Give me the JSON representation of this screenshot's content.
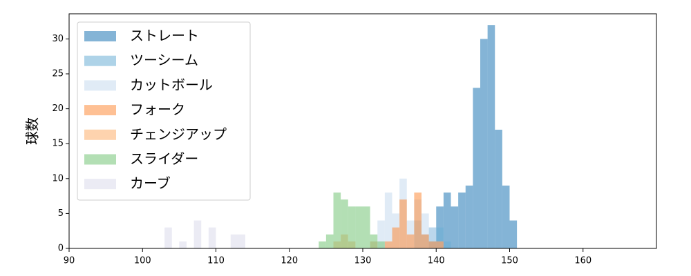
{
  "chart_data": {
    "type": "histogram",
    "y_label": "球数",
    "xlim": [
      90,
      170
    ],
    "ylim": [
      0,
      33.6
    ],
    "xticks": [
      90,
      100,
      110,
      120,
      130,
      140,
      150,
      160
    ],
    "yticks": [
      0,
      5,
      10,
      15,
      20,
      25,
      30
    ],
    "legend": "upper left",
    "series": [
      {
        "name": "ストレート",
        "color": "#1f77b4",
        "bins": [
          139,
          140,
          141,
          142,
          143,
          144,
          145,
          146,
          147,
          148,
          149,
          150,
          151
        ],
        "values": [
          1,
          6,
          8,
          6,
          8,
          9,
          23,
          30,
          32,
          17,
          9,
          4
        ]
      },
      {
        "name": "ツーシーム",
        "color": "#6baed6",
        "bins": [
          137,
          138,
          139,
          140,
          141,
          142
        ],
        "values": [
          4,
          2,
          3,
          3,
          1
        ]
      },
      {
        "name": "カットボール",
        "color": "#c6dbef",
        "bins": [
          131,
          132,
          133,
          134,
          135,
          136,
          137,
          138,
          139,
          140,
          141
        ],
        "values": [
          1,
          4,
          8,
          5,
          10,
          4,
          7,
          5,
          3,
          1
        ]
      },
      {
        "name": "フォーク",
        "color": "#fd8d3c",
        "bins": [
          133,
          134,
          135,
          136,
          137,
          138,
          139,
          140,
          141
        ],
        "values": [
          1,
          3,
          7,
          2,
          8,
          2,
          1,
          1
        ]
      },
      {
        "name": "チェンジアップ",
        "color": "#fdae6b",
        "bins": [
          126,
          127,
          128,
          129,
          130,
          131,
          132
        ],
        "values": [
          1,
          2,
          1,
          0,
          0,
          1
        ]
      },
      {
        "name": "スライダー",
        "color": "#74c476",
        "bins": [
          124,
          125,
          126,
          127,
          128,
          129,
          130,
          131,
          132,
          133
        ],
        "values": [
          1,
          2,
          8,
          7,
          6,
          6,
          6,
          2,
          1
        ]
      },
      {
        "name": "カーブ",
        "color": "#dadaeb",
        "bins": [
          103,
          104,
          105,
          106,
          107,
          108,
          109,
          110,
          111,
          112,
          113,
          114
        ],
        "values": [
          3,
          0,
          1,
          0,
          4,
          0,
          3,
          0,
          0,
          2,
          2
        ]
      }
    ]
  }
}
